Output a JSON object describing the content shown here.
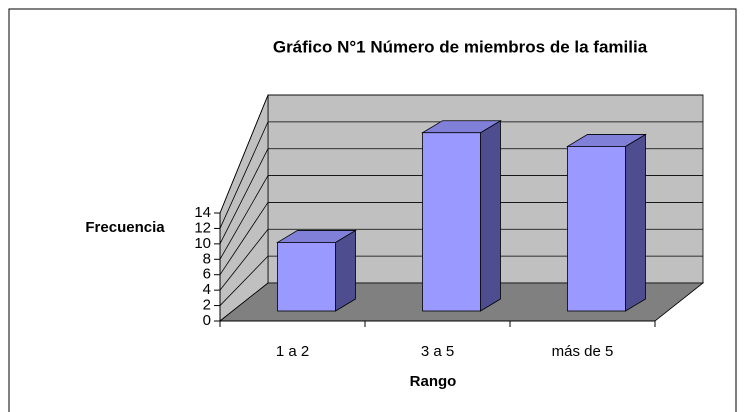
{
  "chart_data": {
    "type": "bar3d",
    "title": "Gráfico N°1 Número de miembros de la familia",
    "x_label": "Rango",
    "y_label": "Frecuencia",
    "categories": [
      "1 a 2",
      "3 a 5",
      "más de 5"
    ],
    "values": [
      5,
      13,
      12
    ],
    "color": "#9999ff",
    "ylim": [
      0,
      14
    ],
    "yticks": [
      0,
      2,
      4,
      6,
      8,
      10,
      12,
      14
    ],
    "grid": true
  }
}
